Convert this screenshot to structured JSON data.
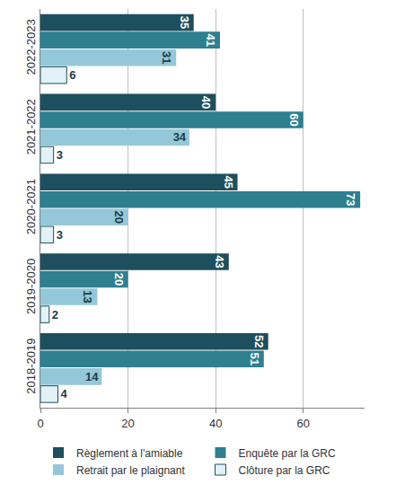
{
  "chart_data": {
    "type": "bar",
    "orientation": "horizontal",
    "categories": [
      "2022-2023",
      "2021-2022",
      "2020-2021",
      "2019-2020",
      "2018-2019"
    ],
    "series": [
      {
        "name": "Règlement à l'amiable",
        "color": "#1d4f5e",
        "values": [
          35,
          40,
          45,
          43,
          52
        ]
      },
      {
        "name": "Enquête par la GRC",
        "color": "#2e7f90",
        "values": [
          41,
          60,
          73,
          20,
          51
        ]
      },
      {
        "name": "Retrait par le plaignant",
        "color": "#94c8d8",
        "values": [
          31,
          34,
          20,
          13,
          14
        ]
      },
      {
        "name": "Clôture par la GRC",
        "color": "#e1f1f6",
        "values": [
          6,
          3,
          3,
          2,
          4
        ]
      }
    ],
    "xlim": [
      0,
      74
    ],
    "xticks": [
      0,
      20,
      40,
      60
    ],
    "grid": true,
    "data_labels": true,
    "legend": "bottom"
  }
}
